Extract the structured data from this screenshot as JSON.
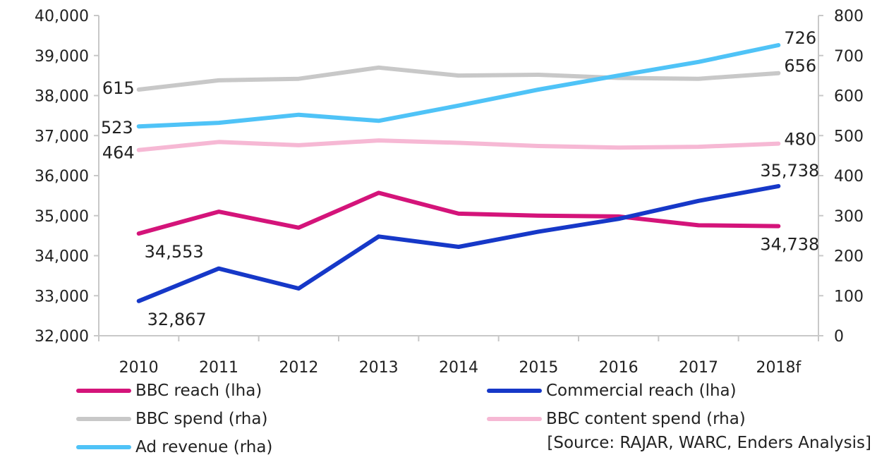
{
  "chart_data": {
    "type": "line",
    "categories": [
      "2010",
      "2011",
      "2012",
      "2013",
      "2014",
      "2015",
      "2016",
      "2017",
      "2018f"
    ],
    "y_left": {
      "ticks": [
        "32,000",
        "33,000",
        "34,000",
        "35,000",
        "36,000",
        "37,000",
        "38,000",
        "39,000",
        "40,000"
      ],
      "ylim": [
        32000,
        40000
      ]
    },
    "y_right": {
      "ticks": [
        "0",
        "100",
        "200",
        "300",
        "400",
        "500",
        "600",
        "700",
        "800"
      ],
      "ylim": [
        0,
        800
      ]
    },
    "grid": false,
    "legend_position": "bottom",
    "series": [
      {
        "name": "BBC reach (lha)",
        "axis": "left",
        "color": "#d4147a",
        "values": [
          34553,
          35100,
          34700,
          35570,
          35050,
          35000,
          34980,
          34760,
          34738
        ],
        "start_label": "34,553",
        "end_label": "34,738"
      },
      {
        "name": "Commercial reach (lha)",
        "axis": "left",
        "color": "#1638c8",
        "values": [
          32867,
          33680,
          33180,
          34480,
          34220,
          34600,
          34920,
          35370,
          35738
        ],
        "start_label": "32,867",
        "end_label": "35,738"
      },
      {
        "name": "BBC spend (rha)",
        "axis": "right",
        "color": "#c8c8c8",
        "values": [
          615,
          638,
          642,
          670,
          650,
          652,
          644,
          642,
          656
        ],
        "start_label": "615",
        "end_label": "656"
      },
      {
        "name": "BBC content spend (rha)",
        "axis": "right",
        "color": "#f6b8d4",
        "values": [
          464,
          484,
          476,
          488,
          482,
          474,
          470,
          472,
          480
        ],
        "start_label": "464",
        "end_label": "480"
      },
      {
        "name": "Ad revenue (rha)",
        "axis": "right",
        "color": "#4fc3f7",
        "values": [
          523,
          532,
          552,
          537,
          575,
          615,
          650,
          684,
          726
        ],
        "start_label": "523",
        "end_label": "726"
      }
    ],
    "source": "[Source: RAJAR, WARC, Enders Analysis]"
  }
}
